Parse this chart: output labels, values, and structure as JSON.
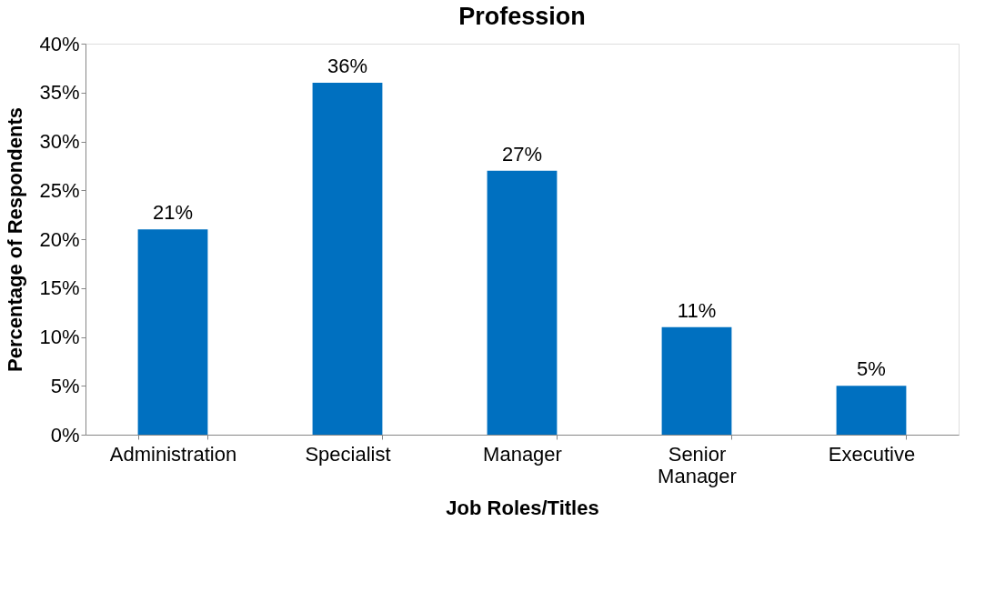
{
  "chart_data": {
    "type": "bar",
    "title": "Profession",
    "xlabel": "Job Roles/Titles",
    "ylabel": "Percentage of Respondents",
    "categories": [
      "Administration",
      "Specialist",
      "Manager",
      "Senior Manager",
      "Executive"
    ],
    "values": [
      21,
      36,
      27,
      11,
      5
    ],
    "value_labels": [
      "21%",
      "36%",
      "27%",
      "11%",
      "5%"
    ],
    "color": "#0070c0",
    "ylim": [
      0,
      40
    ],
    "yticks": [
      {
        "value": 0,
        "label": "0%"
      },
      {
        "value": 5,
        "label": "5%"
      },
      {
        "value": 10,
        "label": "10%"
      },
      {
        "value": 15,
        "label": "15%"
      },
      {
        "value": 20,
        "label": "20%"
      },
      {
        "value": 25,
        "label": "25%"
      },
      {
        "value": 30,
        "label": "30%"
      },
      {
        "value": 35,
        "label": "35%"
      },
      {
        "value": 40,
        "label": "40%"
      }
    ],
    "grid": false
  }
}
